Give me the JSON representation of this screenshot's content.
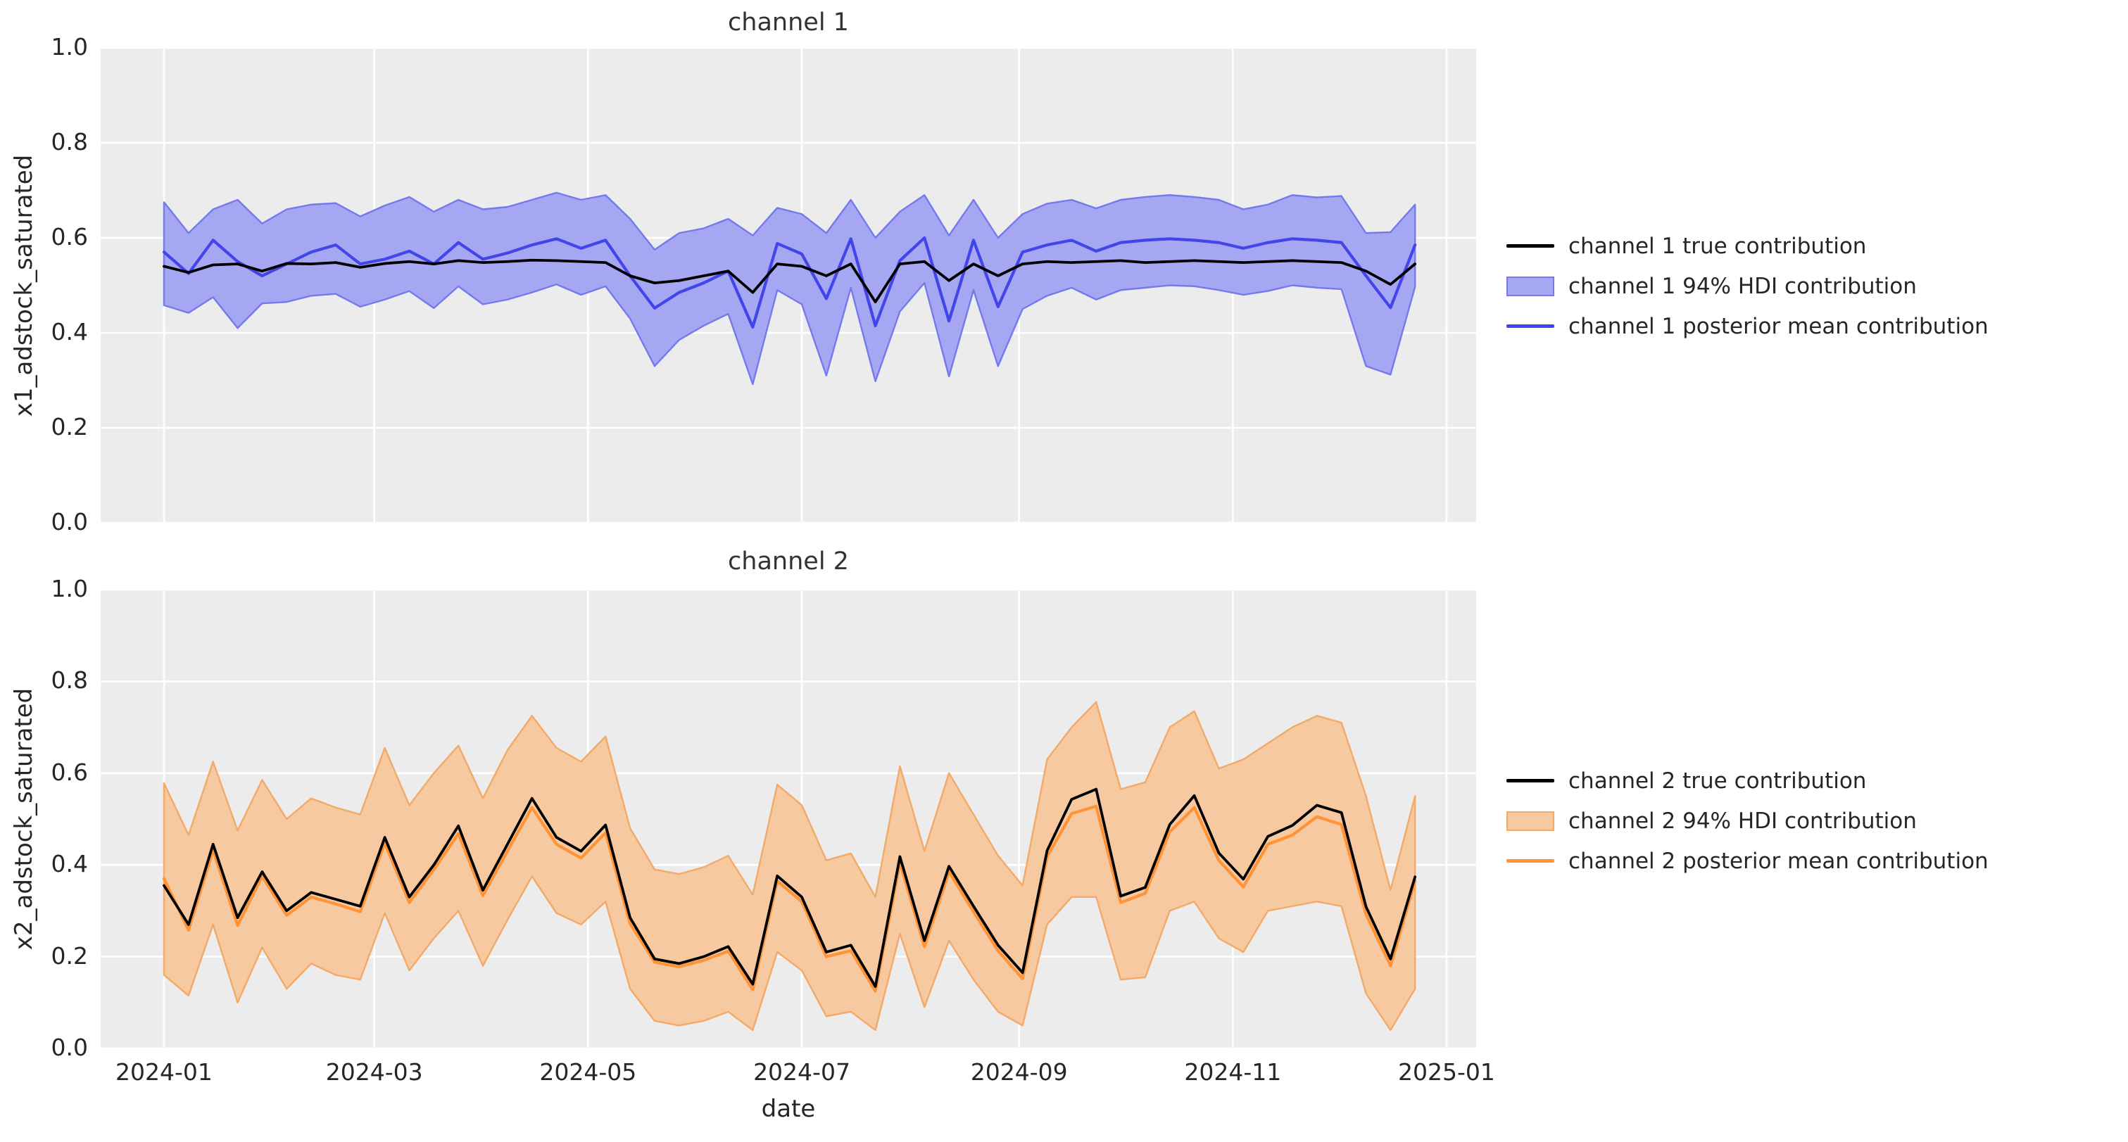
{
  "figure": {
    "background": "#ffffff",
    "axes_background": "#ececec",
    "grid_color": "#ffffff",
    "text_color": "#262626",
    "title_color": "#333333"
  },
  "chart_data": [
    {
      "type": "line",
      "title": "channel 1",
      "ylabel": "x1_adstock_saturated",
      "xlabel": "",
      "ylim": [
        0.0,
        1.0
      ],
      "grid": true,
      "yticks": [
        {
          "label": "1.0",
          "value": 1.0
        },
        {
          "label": "0.8",
          "value": 0.8
        },
        {
          "label": "0.6",
          "value": 0.6
        },
        {
          "label": "0.4",
          "value": 0.4
        },
        {
          "label": "0.2",
          "value": 0.2
        },
        {
          "label": "0.0",
          "value": 0.0
        }
      ],
      "xticks": [
        {
          "label": "2024-01",
          "day": 0
        },
        {
          "label": "2024-03",
          "day": 60
        },
        {
          "label": "2024-05",
          "day": 121
        },
        {
          "label": "2024-07",
          "day": 182
        },
        {
          "label": "2024-09",
          "day": 244
        },
        {
          "label": "2024-11",
          "day": 305
        },
        {
          "label": "2025-01",
          "day": 366
        }
      ],
      "show_xtick_labels": false,
      "x_start_date": "2024-01-01",
      "x_step_days": 7,
      "n_points": 52,
      "series": [
        {
          "name": "channel 1 true contribution",
          "color": "#000000",
          "values": [
            0.54,
            0.527,
            0.543,
            0.545,
            0.53,
            0.546,
            0.545,
            0.548,
            0.538,
            0.546,
            0.55,
            0.545,
            0.552,
            0.548,
            0.55,
            0.553,
            0.552,
            0.55,
            0.548,
            0.52,
            0.505,
            0.51,
            0.52,
            0.53,
            0.485,
            0.545,
            0.54,
            0.52,
            0.545,
            0.465,
            0.545,
            0.55,
            0.51,
            0.545,
            0.52,
            0.545,
            0.55,
            0.548,
            0.55,
            0.552,
            0.548,
            0.55,
            0.552,
            0.55,
            0.548,
            0.55,
            0.552,
            0.55,
            0.548,
            0.53,
            0.502,
            0.545
          ]
        },
        {
          "name": "channel 1 posterior mean contribution",
          "color": "#4245e9",
          "values": [
            0.57,
            0.525,
            0.595,
            0.55,
            0.52,
            0.545,
            0.57,
            0.585,
            0.545,
            0.555,
            0.572,
            0.545,
            0.59,
            0.555,
            0.568,
            0.585,
            0.598,
            0.578,
            0.595,
            0.52,
            0.452,
            0.485,
            0.505,
            0.53,
            0.412,
            0.588,
            0.566,
            0.472,
            0.598,
            0.415,
            0.552,
            0.6,
            0.425,
            0.595,
            0.455,
            0.57,
            0.585,
            0.595,
            0.572,
            0.59,
            0.595,
            0.598,
            0.595,
            0.59,
            0.578,
            0.59,
            0.598,
            0.595,
            0.59,
            0.52,
            0.453,
            0.585
          ]
        }
      ],
      "band": {
        "name": "channel 1 94% HDI contribution",
        "fill": "#a5a7f2",
        "edge": "#7579ee",
        "lower": [
          0.458,
          0.442,
          0.475,
          0.41,
          0.462,
          0.465,
          0.478,
          0.482,
          0.455,
          0.47,
          0.488,
          0.452,
          0.498,
          0.46,
          0.47,
          0.485,
          0.502,
          0.48,
          0.498,
          0.43,
          0.33,
          0.385,
          0.415,
          0.44,
          0.292,
          0.49,
          0.46,
          0.31,
          0.495,
          0.298,
          0.445,
          0.505,
          0.308,
          0.49,
          0.33,
          0.45,
          0.478,
          0.495,
          0.47,
          0.49,
          0.495,
          0.5,
          0.498,
          0.49,
          0.48,
          0.488,
          0.5,
          0.495,
          0.492,
          0.33,
          0.312,
          0.497
        ],
        "upper": [
          0.675,
          0.61,
          0.66,
          0.68,
          0.63,
          0.66,
          0.67,
          0.673,
          0.645,
          0.668,
          0.686,
          0.655,
          0.68,
          0.66,
          0.665,
          0.68,
          0.695,
          0.68,
          0.69,
          0.64,
          0.575,
          0.61,
          0.62,
          0.64,
          0.605,
          0.663,
          0.65,
          0.61,
          0.68,
          0.6,
          0.655,
          0.69,
          0.605,
          0.68,
          0.6,
          0.65,
          0.672,
          0.68,
          0.662,
          0.68,
          0.686,
          0.69,
          0.686,
          0.68,
          0.66,
          0.67,
          0.69,
          0.685,
          0.688,
          0.61,
          0.612,
          0.67
        ]
      },
      "legend": [
        {
          "label": "channel 1 true contribution",
          "swatch": "line",
          "color": "#000000"
        },
        {
          "label": "channel 1 94% HDI contribution",
          "swatch": "patch",
          "fill": "#a5a7f2",
          "edge": "#7579ee"
        },
        {
          "label": "channel 1 posterior mean contribution",
          "swatch": "line",
          "color": "#4245e9"
        }
      ]
    },
    {
      "type": "line",
      "title": "channel 2",
      "ylabel": "x2_adstock_saturated",
      "xlabel": "date",
      "ylim": [
        0.0,
        1.0
      ],
      "grid": true,
      "yticks": [
        {
          "label": "1.0",
          "value": 1.0
        },
        {
          "label": "0.8",
          "value": 0.8
        },
        {
          "label": "0.6",
          "value": 0.6
        },
        {
          "label": "0.4",
          "value": 0.4
        },
        {
          "label": "0.2",
          "value": 0.2
        },
        {
          "label": "0.0",
          "value": 0.0
        }
      ],
      "xticks": [
        {
          "label": "2024-01",
          "day": 0
        },
        {
          "label": "2024-03",
          "day": 60
        },
        {
          "label": "2024-05",
          "day": 121
        },
        {
          "label": "2024-07",
          "day": 182
        },
        {
          "label": "2024-09",
          "day": 244
        },
        {
          "label": "2024-11",
          "day": 305
        },
        {
          "label": "2025-01",
          "day": 366
        }
      ],
      "show_xtick_labels": true,
      "x_start_date": "2024-01-01",
      "x_step_days": 7,
      "n_points": 52,
      "series": [
        {
          "name": "channel 2 true contribution",
          "color": "#000000",
          "values": [
            0.355,
            0.27,
            0.445,
            0.285,
            0.385,
            0.3,
            0.34,
            0.325,
            0.31,
            0.46,
            0.33,
            0.4,
            0.485,
            0.345,
            0.445,
            0.545,
            0.46,
            0.43,
            0.487,
            0.285,
            0.195,
            0.185,
            0.2,
            0.222,
            0.14,
            0.376,
            0.33,
            0.21,
            0.225,
            0.135,
            0.418,
            0.235,
            0.397,
            0.31,
            0.225,
            0.165,
            0.431,
            0.543,
            0.565,
            0.332,
            0.351,
            0.488,
            0.551,
            0.426,
            0.369,
            0.462,
            0.486,
            0.53,
            0.514,
            0.309,
            0.195,
            0.374
          ]
        },
        {
          "name": "channel 2 posterior mean contribution",
          "color": "#ff9336",
          "values": [
            0.37,
            0.258,
            0.432,
            0.268,
            0.375,
            0.29,
            0.33,
            0.315,
            0.298,
            0.448,
            0.318,
            0.39,
            0.468,
            0.333,
            0.43,
            0.525,
            0.445,
            0.415,
            0.47,
            0.272,
            0.188,
            0.178,
            0.192,
            0.212,
            0.128,
            0.365,
            0.32,
            0.2,
            0.213,
            0.125,
            0.405,
            0.222,
            0.385,
            0.298,
            0.213,
            0.152,
            0.418,
            0.512,
            0.528,
            0.318,
            0.338,
            0.472,
            0.525,
            0.41,
            0.352,
            0.445,
            0.465,
            0.505,
            0.488,
            0.292,
            0.18,
            0.365
          ]
        }
      ],
      "band": {
        "name": "channel 2 94% HDI contribution",
        "fill": "#f6c9a0",
        "edge": "#f3a967",
        "lower": [
          0.16,
          0.115,
          0.27,
          0.1,
          0.22,
          0.13,
          0.185,
          0.16,
          0.15,
          0.295,
          0.17,
          0.24,
          0.3,
          0.18,
          0.28,
          0.375,
          0.295,
          0.27,
          0.32,
          0.13,
          0.06,
          0.05,
          0.06,
          0.08,
          0.04,
          0.21,
          0.17,
          0.07,
          0.08,
          0.04,
          0.25,
          0.09,
          0.235,
          0.15,
          0.08,
          0.05,
          0.27,
          0.33,
          0.33,
          0.15,
          0.155,
          0.3,
          0.32,
          0.24,
          0.21,
          0.3,
          0.31,
          0.32,
          0.31,
          0.12,
          0.04,
          0.13
        ],
        "upper": [
          0.578,
          0.465,
          0.625,
          0.475,
          0.585,
          0.5,
          0.545,
          0.525,
          0.51,
          0.655,
          0.53,
          0.6,
          0.66,
          0.545,
          0.65,
          0.725,
          0.655,
          0.625,
          0.68,
          0.48,
          0.39,
          0.38,
          0.395,
          0.42,
          0.335,
          0.575,
          0.53,
          0.41,
          0.425,
          0.33,
          0.615,
          0.43,
          0.6,
          0.51,
          0.42,
          0.355,
          0.63,
          0.7,
          0.755,
          0.565,
          0.58,
          0.7,
          0.735,
          0.61,
          0.63,
          0.665,
          0.7,
          0.725,
          0.71,
          0.55,
          0.345,
          0.55
        ]
      },
      "legend": [
        {
          "label": "channel 2 true contribution",
          "swatch": "line",
          "color": "#000000"
        },
        {
          "label": "channel 2 94% HDI contribution",
          "swatch": "patch",
          "fill": "#f6c9a0",
          "edge": "#f3a967"
        },
        {
          "label": "channel 2 posterior mean contribution",
          "swatch": "line",
          "color": "#ff9336"
        }
      ]
    }
  ]
}
